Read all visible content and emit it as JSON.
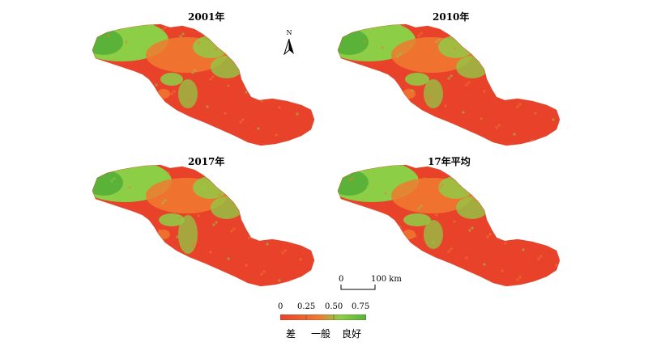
{
  "panels": [
    {
      "title": "2001年",
      "variant": 0
    },
    {
      "title": "2010年",
      "variant": 1
    },
    {
      "title": "2017年",
      "variant": 2
    },
    {
      "title": "17年平均",
      "variant": 3
    }
  ],
  "north_arrow": {
    "label": "N"
  },
  "scale_bar": {
    "start": "0",
    "end": "100 km"
  },
  "legend": {
    "ticks": [
      "0",
      "0.25",
      "0.50",
      "0.75"
    ],
    "classes": [
      "差",
      "一般",
      "良好"
    ],
    "colors": {
      "poor": "#e8432a",
      "mid": "#f07a30",
      "good": "#8ccf46",
      "best": "#5bb238"
    }
  }
}
